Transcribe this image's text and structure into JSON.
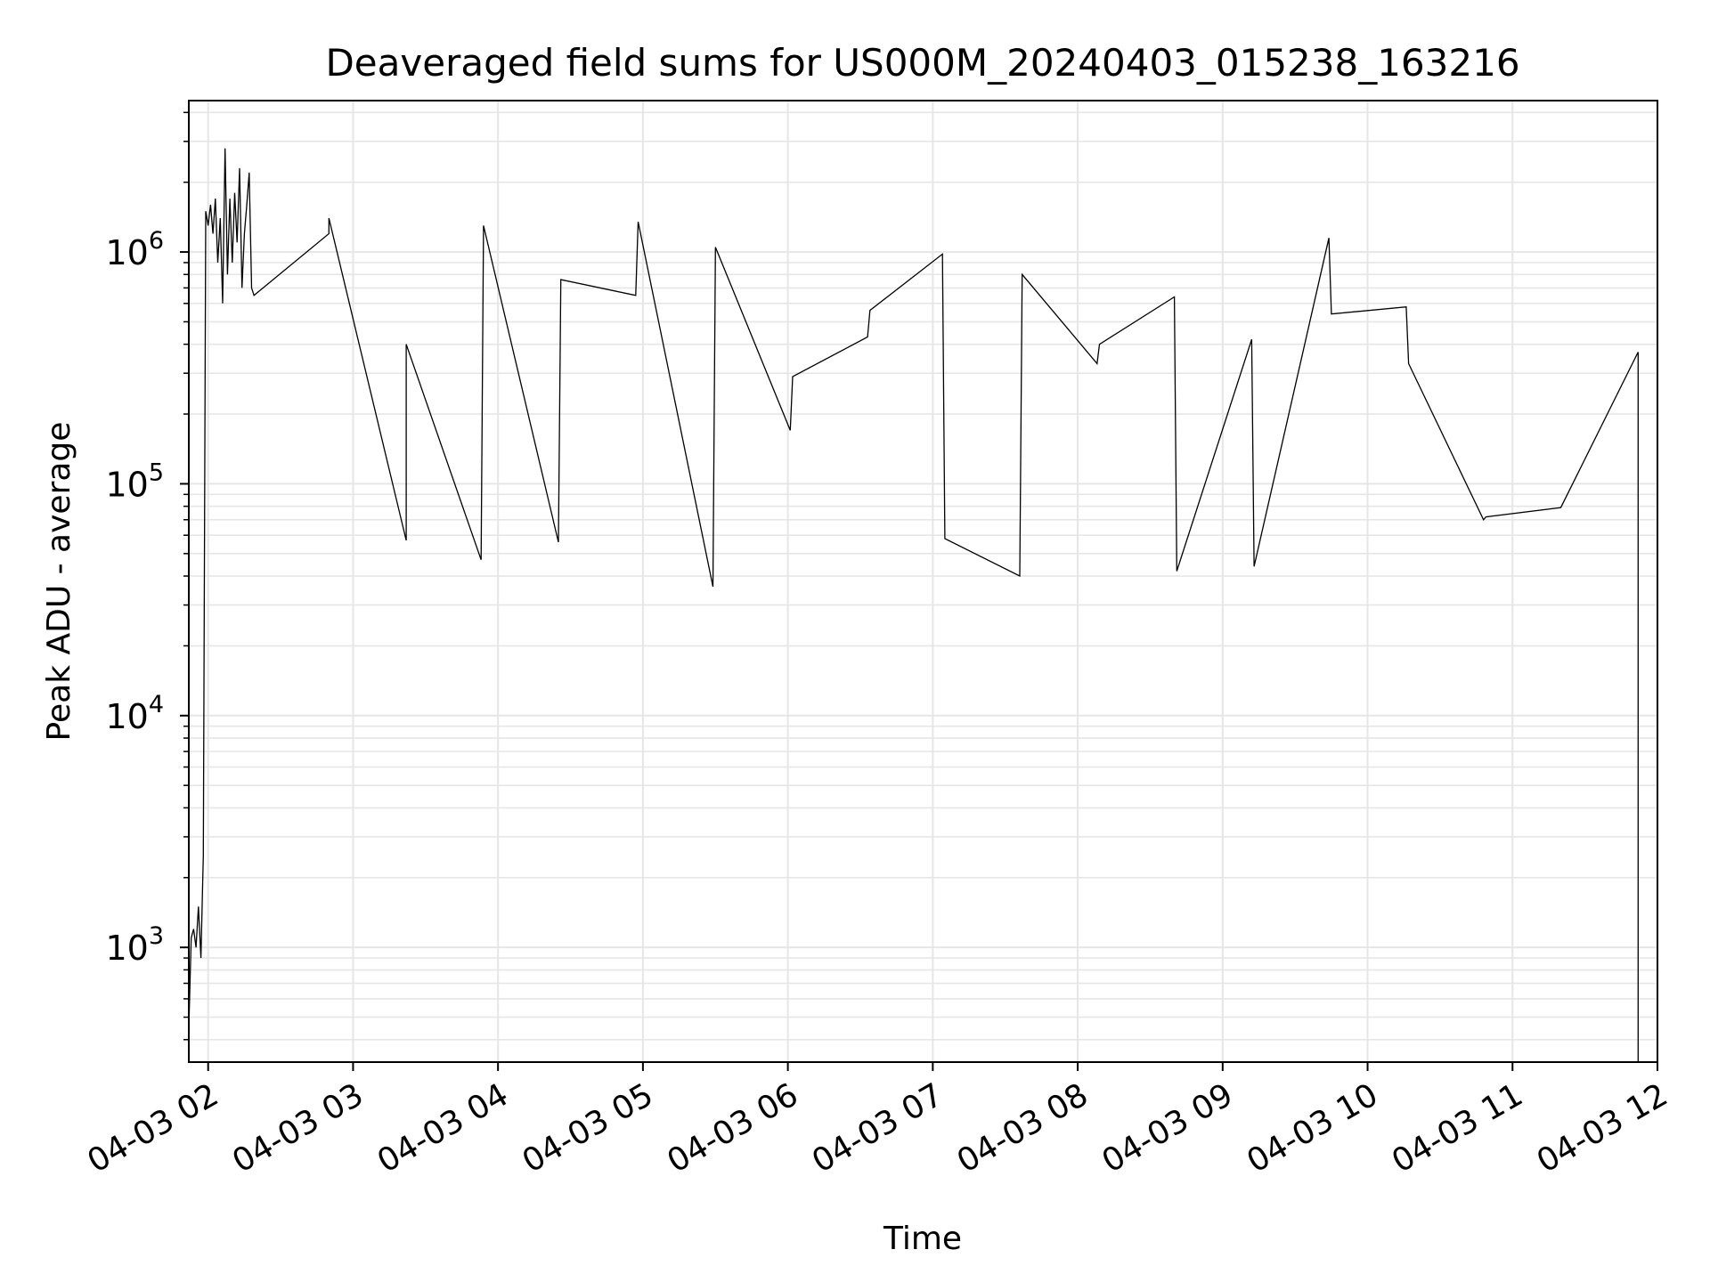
{
  "chart_data": {
    "type": "line",
    "title": "Deaveraged field sums for US000M_20240403_015238_163216",
    "xlabel": "Time",
    "ylabel": "Peak ADU - average",
    "yscale": "log",
    "ylim": [
      320,
      4500000
    ],
    "xlim": [
      "2024-04-03 01:52",
      "2024-04-03 12:00"
    ],
    "grid": true,
    "colors": {
      "line": "#000000",
      "grid": "#e6e6e6",
      "background": "#ffffff"
    },
    "y_ticks": [
      {
        "value": 1000,
        "base": "10",
        "exp": "3"
      },
      {
        "value": 10000,
        "base": "10",
        "exp": "4"
      },
      {
        "value": 100000,
        "base": "10",
        "exp": "5"
      },
      {
        "value": 1000000,
        "base": "10",
        "exp": "6"
      }
    ],
    "x_ticks": [
      {
        "value": "2024-04-03 02:00",
        "label": "04-03 02"
      },
      {
        "value": "2024-04-03 03:00",
        "label": "04-03 03"
      },
      {
        "value": "2024-04-03 04:00",
        "label": "04-03 04"
      },
      {
        "value": "2024-04-03 05:00",
        "label": "04-03 05"
      },
      {
        "value": "2024-04-03 06:00",
        "label": "04-03 06"
      },
      {
        "value": "2024-04-03 07:00",
        "label": "04-03 07"
      },
      {
        "value": "2024-04-03 08:00",
        "label": "04-03 08"
      },
      {
        "value": "2024-04-03 09:00",
        "label": "04-03 09"
      },
      {
        "value": "2024-04-03 10:00",
        "label": "04-03 10"
      },
      {
        "value": "2024-04-03 11:00",
        "label": "04-03 11"
      },
      {
        "value": "2024-04-03 12:00",
        "label": "04-03 12"
      }
    ],
    "series": [
      {
        "x": [
          "2024-04-03 01:52",
          "2024-04-03 01:53",
          "2024-04-03 01:54",
          "2024-04-03 01:55",
          "2024-04-03 01:56",
          "2024-04-03 01:57",
          "2024-04-03 01:58",
          "2024-04-03 01:59",
          "2024-04-03 02:00",
          "2024-04-03 02:01",
          "2024-04-03 02:02",
          "2024-04-03 02:03",
          "2024-04-03 02:04",
          "2024-04-03 02:05",
          "2024-04-03 02:06",
          "2024-04-03 02:07",
          "2024-04-03 02:08",
          "2024-04-03 02:09",
          "2024-04-03 02:10",
          "2024-04-03 02:11",
          "2024-04-03 02:12",
          "2024-04-03 02:13",
          "2024-04-03 02:14",
          "2024-04-03 02:15",
          "2024-04-03 02:16",
          "2024-04-03 02:17",
          "2024-04-03 02:18",
          "2024-04-03 02:19",
          "2024-04-03 02:50",
          "2024-04-03 02:50",
          "2024-04-03 03:22",
          "2024-04-03 03:22",
          "2024-04-03 03:53",
          "2024-04-03 03:54",
          "2024-04-03 04:25",
          "2024-04-03 04:26",
          "2024-04-03 04:57",
          "2024-04-03 04:58",
          "2024-04-03 05:29",
          "2024-04-03 05:30",
          "2024-04-03 06:01",
          "2024-04-03 06:02",
          "2024-04-03 06:33",
          "2024-04-03 06:34",
          "2024-04-03 07:04",
          "2024-04-03 07:05",
          "2024-04-03 07:36",
          "2024-04-03 07:37",
          "2024-04-03 08:08",
          "2024-04-03 08:09",
          "2024-04-03 08:40",
          "2024-04-03 08:41",
          "2024-04-03 09:12",
          "2024-04-03 09:13",
          "2024-04-03 09:44",
          "2024-04-03 09:45",
          "2024-04-03 10:16",
          "2024-04-03 10:17",
          "2024-04-03 10:48",
          "2024-04-03 10:49",
          "2024-04-03 11:20",
          "2024-04-03 11:52",
          "2024-04-03 11:52"
        ],
        "y": [
          450,
          1100,
          1200,
          1000,
          1500,
          900,
          2500,
          1500000,
          1300000,
          1600000,
          1200000,
          1700000,
          900000,
          1400000,
          600000,
          2800000,
          800000,
          1700000,
          900000,
          1800000,
          1100000,
          2300000,
          700000,
          1200000,
          1600000,
          2200000,
          700000,
          650000,
          1200000,
          1400000,
          57000,
          400000,
          47000,
          1300000,
          56000,
          760000,
          650000,
          1350000,
          36000,
          1050000,
          170000,
          290000,
          430000,
          560000,
          980000,
          58000,
          40000,
          800000,
          330000,
          400000,
          640000,
          42000,
          420000,
          44000,
          1150000,
          540000,
          580000,
          330000,
          70000,
          72000,
          79000,
          370000,
          320
        ]
      }
    ]
  }
}
